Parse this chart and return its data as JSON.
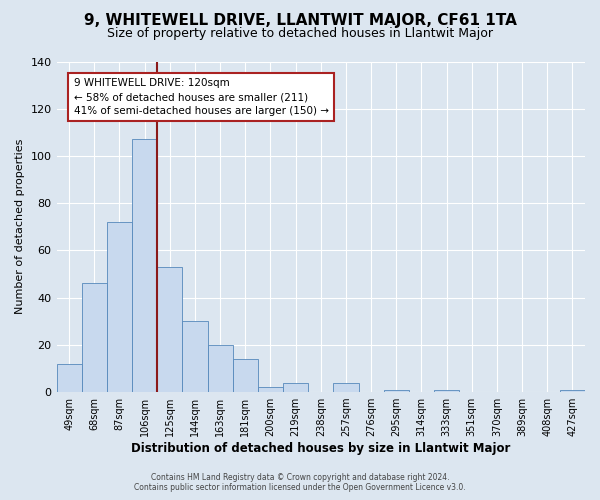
{
  "title": "9, WHITEWELL DRIVE, LLANTWIT MAJOR, CF61 1TA",
  "subtitle": "Size of property relative to detached houses in Llantwit Major",
  "xlabel": "Distribution of detached houses by size in Llantwit Major",
  "ylabel": "Number of detached properties",
  "bar_labels": [
    "49sqm",
    "68sqm",
    "87sqm",
    "106sqm",
    "125sqm",
    "144sqm",
    "163sqm",
    "181sqm",
    "200sqm",
    "219sqm",
    "238sqm",
    "257sqm",
    "276sqm",
    "295sqm",
    "314sqm",
    "333sqm",
    "351sqm",
    "370sqm",
    "389sqm",
    "408sqm",
    "427sqm"
  ],
  "bar_values": [
    12,
    46,
    72,
    107,
    53,
    30,
    20,
    14,
    2,
    4,
    0,
    4,
    0,
    1,
    0,
    1,
    0,
    0,
    0,
    0,
    1
  ],
  "bar_color": "#c8d9ee",
  "bar_edge_color": "#5588bb",
  "ylim": [
    0,
    140
  ],
  "yticks": [
    0,
    20,
    40,
    60,
    80,
    100,
    120,
    140
  ],
  "vline_color": "#8b1a1a",
  "annotation_title": "9 WHITEWELL DRIVE: 120sqm",
  "annotation_line1": "← 58% of detached houses are smaller (211)",
  "annotation_line2": "41% of semi-detached houses are larger (150) →",
  "annotation_box_color": "#ffffff",
  "annotation_box_edge": "#aa2222",
  "footer_line1": "Contains HM Land Registry data © Crown copyright and database right 2024.",
  "footer_line2": "Contains public sector information licensed under the Open Government Licence v3.0.",
  "background_color": "#dce6f0",
  "plot_bg_color": "#dce6f0",
  "title_fontsize": 11,
  "subtitle_fontsize": 9
}
